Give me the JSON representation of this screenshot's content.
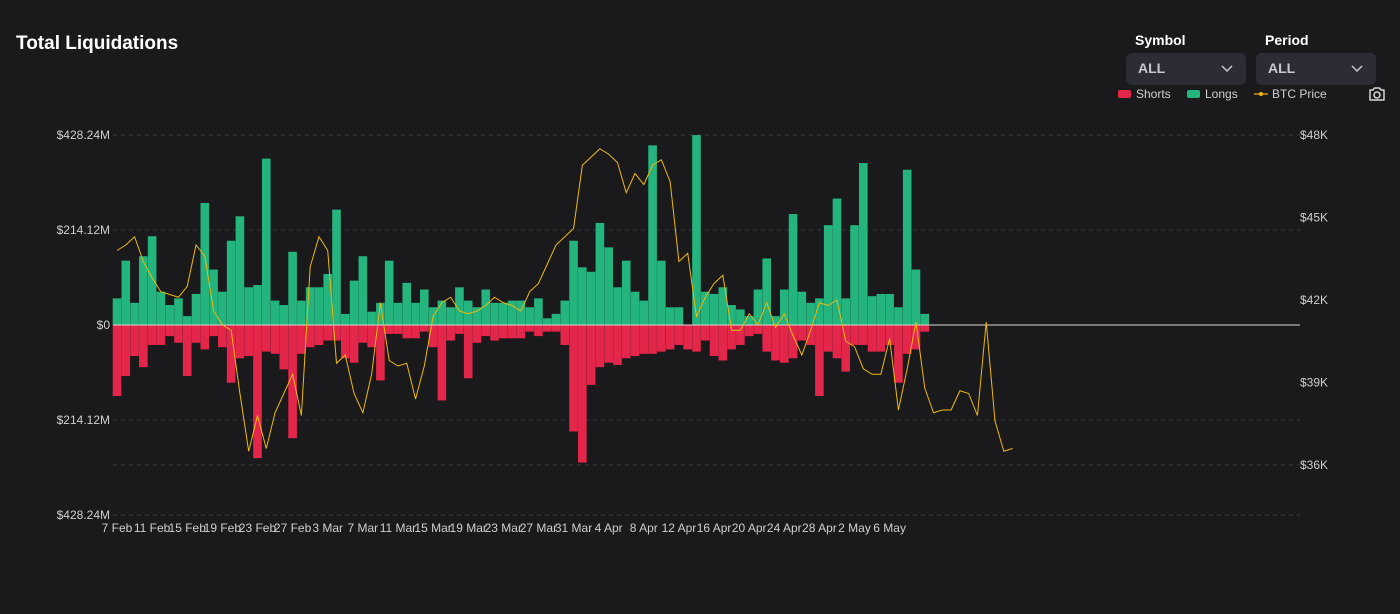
{
  "header": {
    "title": "Total Liquidations"
  },
  "controls": {
    "symbol": {
      "label": "Symbol",
      "value": "ALL"
    },
    "period": {
      "label": "Period",
      "value": "ALL"
    }
  },
  "legend": [
    {
      "name": "Shorts",
      "color": "#e5264b"
    },
    {
      "name": "Longs",
      "color": "#24b47e"
    },
    {
      "name": "BTC Price",
      "color": "#f0b90b"
    }
  ],
  "icons": {
    "chevron": "chevron-down-icon",
    "camera": "camera-icon"
  },
  "chart_data": {
    "type": "bar",
    "title": "Total Liquidations",
    "grid": true,
    "legend_position": "top-right",
    "left_axis": {
      "ticks": [
        "$428.24M",
        "$214.12M",
        "$0",
        "$214.12M",
        "$428.24M"
      ],
      "range": [
        -428.24,
        428.24
      ],
      "unit": "$M"
    },
    "right_axis": {
      "ticks": [
        "$48K",
        "$45K",
        "$42K",
        "$39K",
        "$36K"
      ],
      "range_k": [
        36,
        48
      ]
    },
    "x_ticks": [
      "7 Feb",
      "11 Feb",
      "15 Feb",
      "19 Feb",
      "23 Feb",
      "27 Feb",
      "3 Mar",
      "7 Mar",
      "11 Mar",
      "15 Mar",
      "19 Mar",
      "23 Mar",
      "27 Mar",
      "31 Mar",
      "4 Apr",
      "8 Apr",
      "12 Apr",
      "16 Apr",
      "20 Apr",
      "24 Apr",
      "28 Apr",
      "2 May",
      "6 May"
    ],
    "series": [
      {
        "name": "Longs",
        "color": "#24b47e",
        "values": [
          60,
          145,
          50,
          155,
          200,
          75,
          45,
          60,
          20,
          70,
          275,
          125,
          75,
          190,
          245,
          85,
          90,
          375,
          55,
          45,
          165,
          55,
          85,
          85,
          115,
          260,
          25,
          100,
          155,
          30,
          50,
          145,
          50,
          95,
          50,
          80,
          40,
          55,
          40,
          85,
          55,
          40,
          80,
          50,
          50,
          55,
          55,
          40,
          60,
          15,
          25,
          55,
          190,
          130,
          120,
          230,
          175,
          85,
          145,
          75,
          55,
          405,
          145,
          40,
          40,
          0,
          428,
          75,
          70,
          85,
          45,
          35,
          20,
          80,
          150,
          20,
          80,
          250,
          75,
          50,
          60,
          225,
          285,
          60,
          225,
          365,
          65,
          70,
          70,
          40,
          350,
          125,
          25
        ]
      },
      {
        "name": "Shorts",
        "color": "#e5264b",
        "values": [
          160,
          115,
          70,
          95,
          45,
          45,
          25,
          40,
          115,
          40,
          55,
          25,
          50,
          130,
          75,
          70,
          300,
          60,
          65,
          100,
          255,
          65,
          50,
          45,
          35,
          35,
          75,
          85,
          40,
          50,
          125,
          20,
          20,
          30,
          30,
          15,
          50,
          170,
          35,
          20,
          120,
          40,
          25,
          35,
          30,
          30,
          30,
          15,
          25,
          15,
          15,
          45,
          240,
          310,
          135,
          95,
          85,
          90,
          75,
          70,
          65,
          65,
          60,
          55,
          45,
          55,
          60,
          35,
          70,
          80,
          55,
          45,
          25,
          20,
          60,
          80,
          85,
          75,
          35,
          45,
          160,
          60,
          75,
          105,
          45,
          45,
          60,
          60,
          45,
          130,
          65,
          55,
          15
        ]
      },
      {
        "name": "BTC Price",
        "color": "#f0b90b",
        "unit": "K",
        "values": [
          43.8,
          44.0,
          44.3,
          43.4,
          42.8,
          42.3,
          42.2,
          42.1,
          42.5,
          44.0,
          43.6,
          41.6,
          41.1,
          40.9,
          38.6,
          36.5,
          37.8,
          36.6,
          37.9,
          38.6,
          39.3,
          37.8,
          43.2,
          44.3,
          43.8,
          39.7,
          40.0,
          38.6,
          37.9,
          39.3,
          41.9,
          39.8,
          39.6,
          39.7,
          38.4,
          39.6,
          41.4,
          41.9,
          42.1,
          41.6,
          41.5,
          41.6,
          41.8,
          42.1,
          41.9,
          41.8,
          41.6,
          42.3,
          42.6,
          43.3,
          44.0,
          44.3,
          44.6,
          46.9,
          47.2,
          47.5,
          47.3,
          47.0,
          45.9,
          46.6,
          46.2,
          46.9,
          47.1,
          46.3,
          43.4,
          43.7,
          41.4,
          42.1,
          42.6,
          42.9,
          40.9,
          40.9,
          41.5,
          41.1,
          41.9,
          41.0,
          41.5,
          40.7,
          40.0,
          40.9,
          41.9,
          41.8,
          42.0,
          40.5,
          40.3,
          39.5,
          39.3,
          39.3,
          40.6,
          38.0,
          39.5,
          41.2,
          38.8,
          37.9,
          38.0,
          38.0,
          38.7,
          38.6,
          37.8,
          41.2,
          37.6,
          36.5,
          36.6
        ]
      }
    ],
    "x_tick_bar_index": [
      0,
      4,
      8,
      12,
      16,
      20,
      24,
      28,
      32,
      36,
      40,
      44,
      48,
      52,
      56,
      60,
      64,
      68,
      72,
      76,
      80,
      84,
      88
    ]
  }
}
